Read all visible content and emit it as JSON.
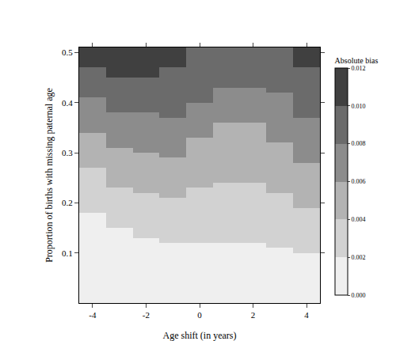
{
  "chart_data": {
    "type": "heatmap",
    "x_label": "Age shift (in years)",
    "y_label": "Proportion of births with missing paternal age",
    "colorbar_title": "Absolute bias",
    "x": [
      -4,
      -3,
      -2,
      -1,
      0,
      1,
      2,
      3,
      4
    ],
    "y": [
      0.005,
      0.015,
      0.025,
      0.035,
      0.045,
      0.055,
      0.065,
      0.075,
      0.085,
      0.095,
      0.105,
      0.115,
      0.125,
      0.135,
      0.145,
      0.155,
      0.165,
      0.175,
      0.185,
      0.195,
      0.205,
      0.215,
      0.225,
      0.235,
      0.245,
      0.255,
      0.265,
      0.275,
      0.285,
      0.295,
      0.305,
      0.315,
      0.325,
      0.335,
      0.345,
      0.355,
      0.365,
      0.375,
      0.385,
      0.395,
      0.405,
      0.415,
      0.425,
      0.435,
      0.445,
      0.455,
      0.465,
      0.475,
      0.485,
      0.495,
      0.505
    ],
    "cells": [
      [
        0.001,
        0.001,
        0.001,
        0.001,
        0.001,
        0.001,
        0.001,
        0.001,
        0.001
      ],
      [
        0.001,
        0.001,
        0.001,
        0.001,
        0.001,
        0.001,
        0.001,
        0.001,
        0.001
      ],
      [
        0.001,
        0.001,
        0.001,
        0.001,
        0.001,
        0.001,
        0.001,
        0.001,
        0.001
      ],
      [
        0.001,
        0.001,
        0.001,
        0.001,
        0.001,
        0.001,
        0.001,
        0.001,
        0.001
      ],
      [
        0.001,
        0.001,
        0.001,
        0.001,
        0.001,
        0.001,
        0.001,
        0.001,
        0.001
      ],
      [
        0.001,
        0.001,
        0.001,
        0.001,
        0.001,
        0.001,
        0.001,
        0.001,
        0.001
      ],
      [
        0.001,
        0.001,
        0.001,
        0.001,
        0.001,
        0.001,
        0.001,
        0.001,
        0.001
      ],
      [
        0.001,
        0.001,
        0.001,
        0.001,
        0.001,
        0.001,
        0.001,
        0.001,
        0.001
      ],
      [
        0.001,
        0.001,
        0.001,
        0.001,
        0.001,
        0.001,
        0.001,
        0.001,
        0.001
      ],
      [
        0.001,
        0.001,
        0.001,
        0.001,
        0.001,
        0.001,
        0.001,
        0.001,
        0.001
      ],
      [
        0.001,
        0.001,
        0.001,
        0.001,
        0.001,
        0.001,
        0.001,
        0.001,
        0.003
      ],
      [
        0.001,
        0.001,
        0.001,
        0.001,
        0.001,
        0.001,
        0.001,
        0.003,
        0.003
      ],
      [
        0.001,
        0.001,
        0.001,
        0.003,
        0.003,
        0.003,
        0.003,
        0.003,
        0.003
      ],
      [
        0.001,
        0.001,
        0.003,
        0.003,
        0.003,
        0.003,
        0.003,
        0.003,
        0.003
      ],
      [
        0.001,
        0.001,
        0.003,
        0.003,
        0.003,
        0.003,
        0.003,
        0.003,
        0.003
      ],
      [
        0.001,
        0.003,
        0.003,
        0.003,
        0.003,
        0.003,
        0.003,
        0.003,
        0.003
      ],
      [
        0.001,
        0.003,
        0.003,
        0.003,
        0.003,
        0.003,
        0.003,
        0.003,
        0.003
      ],
      [
        0.001,
        0.003,
        0.003,
        0.003,
        0.003,
        0.003,
        0.003,
        0.003,
        0.003
      ],
      [
        0.003,
        0.003,
        0.003,
        0.003,
        0.003,
        0.003,
        0.003,
        0.003,
        0.003
      ],
      [
        0.003,
        0.003,
        0.003,
        0.003,
        0.003,
        0.003,
        0.003,
        0.003,
        0.005
      ],
      [
        0.003,
        0.003,
        0.003,
        0.003,
        0.003,
        0.003,
        0.003,
        0.003,
        0.005
      ],
      [
        0.003,
        0.003,
        0.003,
        0.005,
        0.003,
        0.003,
        0.003,
        0.003,
        0.005
      ],
      [
        0.003,
        0.003,
        0.005,
        0.005,
        0.003,
        0.003,
        0.003,
        0.005,
        0.005
      ],
      [
        0.003,
        0.005,
        0.005,
        0.005,
        0.005,
        0.003,
        0.003,
        0.005,
        0.005
      ],
      [
        0.003,
        0.005,
        0.005,
        0.005,
        0.005,
        0.005,
        0.005,
        0.005,
        0.005
      ],
      [
        0.003,
        0.005,
        0.005,
        0.005,
        0.005,
        0.005,
        0.005,
        0.005,
        0.005
      ],
      [
        0.003,
        0.005,
        0.005,
        0.005,
        0.005,
        0.005,
        0.005,
        0.005,
        0.005
      ],
      [
        0.005,
        0.005,
        0.005,
        0.005,
        0.005,
        0.005,
        0.005,
        0.005,
        0.005
      ],
      [
        0.005,
        0.005,
        0.005,
        0.005,
        0.005,
        0.005,
        0.005,
        0.005,
        0.007
      ],
      [
        0.005,
        0.005,
        0.005,
        0.007,
        0.005,
        0.005,
        0.005,
        0.005,
        0.007
      ],
      [
        0.005,
        0.005,
        0.007,
        0.007,
        0.005,
        0.005,
        0.005,
        0.005,
        0.007
      ],
      [
        0.005,
        0.007,
        0.007,
        0.007,
        0.005,
        0.005,
        0.005,
        0.005,
        0.007
      ],
      [
        0.005,
        0.007,
        0.007,
        0.007,
        0.005,
        0.005,
        0.005,
        0.007,
        0.007
      ],
      [
        0.005,
        0.007,
        0.007,
        0.007,
        0.007,
        0.005,
        0.005,
        0.007,
        0.007
      ],
      [
        0.007,
        0.007,
        0.007,
        0.007,
        0.007,
        0.005,
        0.005,
        0.007,
        0.007
      ],
      [
        0.007,
        0.007,
        0.007,
        0.007,
        0.007,
        0.005,
        0.005,
        0.007,
        0.007
      ],
      [
        0.007,
        0.007,
        0.007,
        0.007,
        0.007,
        0.007,
        0.007,
        0.007,
        0.007
      ],
      [
        0.007,
        0.007,
        0.007,
        0.009,
        0.007,
        0.007,
        0.007,
        0.007,
        0.009
      ],
      [
        0.007,
        0.009,
        0.009,
        0.009,
        0.007,
        0.007,
        0.007,
        0.007,
        0.009
      ],
      [
        0.007,
        0.009,
        0.009,
        0.009,
        0.007,
        0.007,
        0.007,
        0.007,
        0.009
      ],
      [
        0.007,
        0.009,
        0.009,
        0.009,
        0.009,
        0.007,
        0.007,
        0.007,
        0.009
      ],
      [
        0.009,
        0.009,
        0.009,
        0.009,
        0.009,
        0.007,
        0.007,
        0.007,
        0.009
      ],
      [
        0.009,
        0.009,
        0.009,
        0.009,
        0.009,
        0.007,
        0.007,
        0.009,
        0.009
      ],
      [
        0.009,
        0.009,
        0.009,
        0.009,
        0.009,
        0.009,
        0.009,
        0.009,
        0.009
      ],
      [
        0.009,
        0.009,
        0.009,
        0.009,
        0.009,
        0.009,
        0.009,
        0.009,
        0.009
      ],
      [
        0.009,
        0.011,
        0.011,
        0.009,
        0.009,
        0.009,
        0.009,
        0.009,
        0.009
      ],
      [
        0.009,
        0.011,
        0.011,
        0.009,
        0.009,
        0.009,
        0.009,
        0.009,
        0.009
      ],
      [
        0.011,
        0.011,
        0.011,
        0.011,
        0.009,
        0.009,
        0.009,
        0.009,
        0.011
      ],
      [
        0.011,
        0.011,
        0.011,
        0.011,
        0.009,
        0.009,
        0.009,
        0.009,
        0.011
      ],
      [
        0.011,
        0.011,
        0.011,
        0.011,
        0.009,
        0.009,
        0.009,
        0.009,
        0.011
      ],
      [
        0.011,
        0.011,
        0.011,
        0.011,
        0.009,
        0.009,
        0.009,
        0.009,
        0.011
      ]
    ],
    "xlim": [
      -4.5,
      4.5
    ],
    "xticks": [
      -4,
      -2,
      0,
      2,
      4
    ],
    "ylim": [
      0,
      0.51
    ],
    "yticks": [
      0.1,
      0.2,
      0.3,
      0.4,
      0.5
    ],
    "color_range": [
      0,
      0.012
    ],
    "color_ticks": [
      {
        "value": 0,
        "label": "0.000"
      },
      {
        "value": 0.002,
        "label": "0.002"
      },
      {
        "value": 0.004,
        "label": "0.004"
      },
      {
        "value": 0.006,
        "label": "0.006"
      },
      {
        "value": 0.008,
        "label": "0.008"
      },
      {
        "value": 0.01,
        "label": "0.010"
      },
      {
        "value": 0.012,
        "label": "0.012"
      }
    ],
    "colors": [
      "#efefef",
      "#d2d2d2",
      "#b3b3b3",
      "#8c8c8c",
      "#6b6b6b",
      "#404040"
    ],
    "grid": false
  }
}
